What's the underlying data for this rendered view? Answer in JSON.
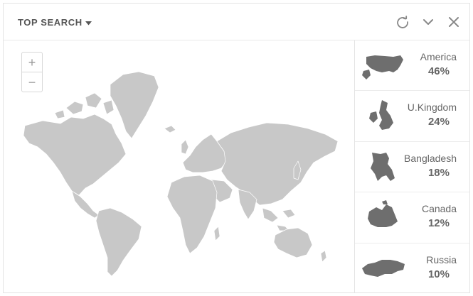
{
  "header": {
    "title": "TOP SEARCH",
    "icons": {
      "refresh": "refresh-icon",
      "collapse": "chevron-down-icon",
      "close": "close-icon"
    }
  },
  "map": {
    "zoom_in": "+",
    "zoom_out": "−",
    "land_color": "#c8c8c8",
    "border_color": "#ffffff"
  },
  "countries": [
    {
      "name": "America",
      "percent": "46%"
    },
    {
      "name": "U.Kingdom",
      "percent": "24%"
    },
    {
      "name": "Bangladesh",
      "percent": "18%"
    },
    {
      "name": "Canada",
      "percent": "12%"
    },
    {
      "name": "Russia",
      "percent": "10%"
    }
  ],
  "colors": {
    "text": "#666666",
    "shape": "#6e6e6e",
    "border": "#e4e4e4"
  }
}
